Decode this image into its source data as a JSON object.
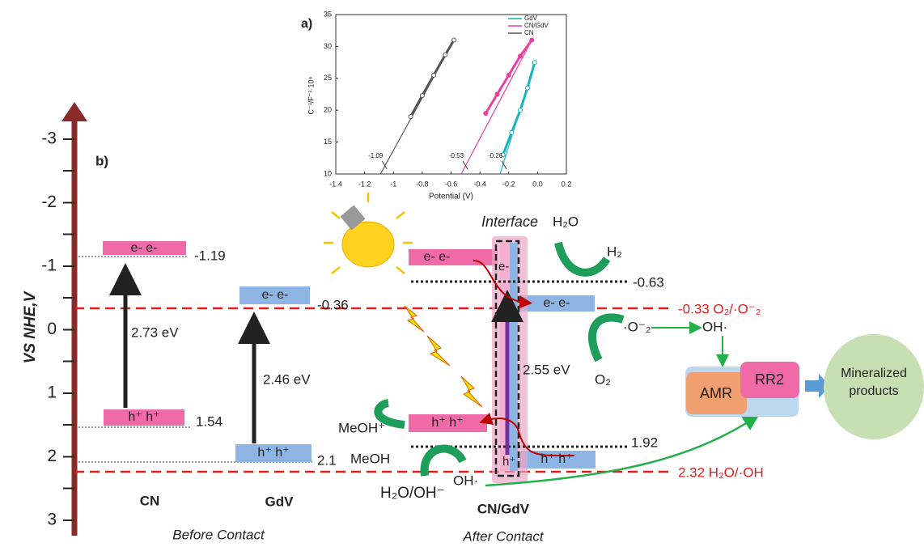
{
  "chart_data": {
    "type": "line",
    "label": "a)",
    "x_label": "Potential (V)",
    "y_label": "C⁻¹/F⁻¹·10⁹",
    "xlim": [
      -1.4,
      0.2
    ],
    "xticks": [
      -1.4,
      -1.2,
      -1,
      -0.8,
      -0.6,
      -0.4,
      -0.2,
      {
        "value": 0,
        "label": "0.0"
      },
      0.2
    ],
    "ylim": [
      10,
      35
    ],
    "yticks": [
      10,
      15,
      20,
      25,
      30,
      35
    ],
    "series": [
      {
        "name": "GdV",
        "color": "#17b3c1",
        "intercept": -0.26,
        "x": [
          -0.24,
          -0.18,
          -0.12,
          -0.07,
          -0.02
        ],
        "values": [
          13,
          16.5,
          20,
          23.5,
          27.5
        ]
      },
      {
        "name": "CN/GdV",
        "color": "#ec3fa0",
        "intercept": -0.53,
        "x": [
          -0.36,
          -0.28,
          -0.2,
          -0.12,
          -0.04
        ],
        "values": [
          19.5,
          22.5,
          25.5,
          28.5,
          31
        ]
      },
      {
        "name": "CN",
        "color": "#555555",
        "intercept": -1.09,
        "x": [
          -0.88,
          -0.8,
          -0.72,
          -0.64,
          -0.58
        ],
        "values": [
          19,
          22.3,
          25.5,
          28.7,
          31
        ]
      }
    ]
  },
  "diagram": {
    "label": "b)",
    "axis": {
      "title": "VS NHE,V",
      "ticks": [
        "-3",
        "-2",
        "-1",
        "0",
        "1",
        "2",
        "3"
      ]
    },
    "before": {
      "caption": "Before Contact",
      "cn": {
        "name": "CN",
        "cb": "e- e-",
        "vb": "h⁺ h⁺",
        "cb_level": "-1.19",
        "vb_level": "1.54",
        "gap": "2.73 eV"
      },
      "gdv": {
        "name": "GdV",
        "cb": "e- e-",
        "vb": "h⁺ h⁺",
        "cb_level": "-0.36",
        "vb_level": "2.1",
        "gap": "2.46 eV"
      }
    },
    "after": {
      "caption": "After Contact",
      "name": "CN/GdV",
      "interface": "Interface",
      "cn_cb": "e- e-",
      "cn_vb": "h⁺ h⁺",
      "gdv_cb": "e- e-",
      "gdv_vb": "h⁺ h⁺",
      "cb_level": "-0.63",
      "vb_level": "1.92",
      "gap": "2.55 eV",
      "e": "e-",
      "h": "h⁺"
    },
    "redox": [
      "-0.33 O₂/·O⁻₂",
      "2.32 H₂O/·OH"
    ],
    "species": {
      "h2o": "H₂O",
      "h2": "H₂",
      "o2_rad": "·O⁻₂",
      "oh_top": "OH·",
      "o2": "O₂",
      "meoh_plus": "MeOH⁺",
      "meoh": "MeOH",
      "h2o_oh": "H₂O/OH⁻",
      "oh_bottom": "OH·"
    },
    "process": {
      "amr": "AMR",
      "rr2": "RR2",
      "products": [
        "Mineralized",
        "products"
      ]
    }
  }
}
